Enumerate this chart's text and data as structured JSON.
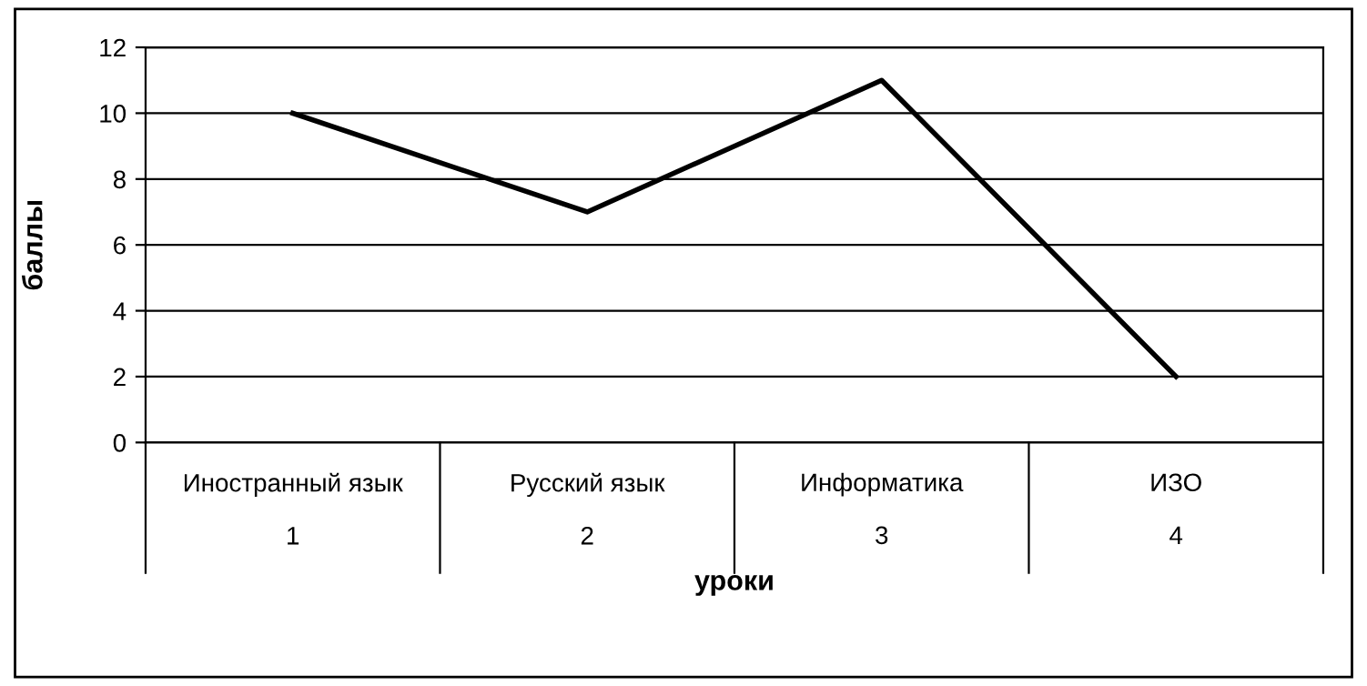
{
  "chart_data": {
    "type": "line",
    "categories": [
      "Иностранный язык\n1",
      "Русский язык\n2",
      "Информатика\n3",
      "ИЗО\n4"
    ],
    "values": [
      10,
      7,
      11,
      2
    ],
    "color": "#000000",
    "ylim": [
      0,
      12
    ],
    "yticks": [
      0,
      2,
      4,
      6,
      8,
      10,
      12
    ],
    "grid": "y",
    "legend": false,
    "marker": "none",
    "line_style": "solid",
    "xlabel": "уроки",
    "ylabel": "баллы"
  }
}
